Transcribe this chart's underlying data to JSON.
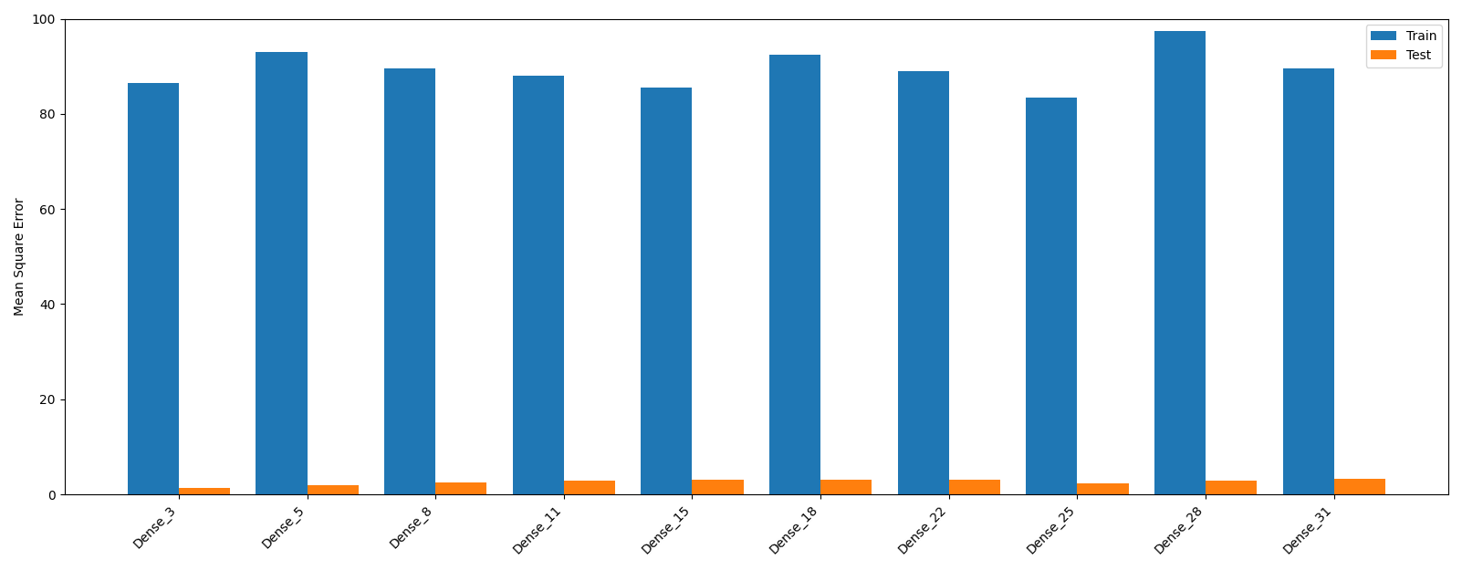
{
  "categories": [
    "Dense_3",
    "Dense_5",
    "Dense_8",
    "Dense_11",
    "Dense_15",
    "Dense_18",
    "Dense_22",
    "Dense_25",
    "Dense_28",
    "Dense_31"
  ],
  "train_values": [
    86.5,
    93.0,
    89.5,
    88.0,
    85.5,
    92.5,
    89.0,
    83.5,
    97.5,
    89.5
  ],
  "test_values": [
    1.3,
    2.0,
    2.5,
    2.8,
    3.0,
    3.0,
    3.0,
    2.3,
    2.8,
    3.2
  ],
  "train_color": "#1f77b4",
  "test_color": "#ff7f0e",
  "ylabel": "Mean Square Error",
  "ylim": [
    0,
    100
  ],
  "yticks": [
    0,
    20,
    40,
    60,
    80,
    100
  ],
  "legend_labels": [
    "Train",
    "Test"
  ],
  "bar_width": 0.4,
  "figsize": [
    16.02,
    6.25
  ],
  "dpi": 100
}
